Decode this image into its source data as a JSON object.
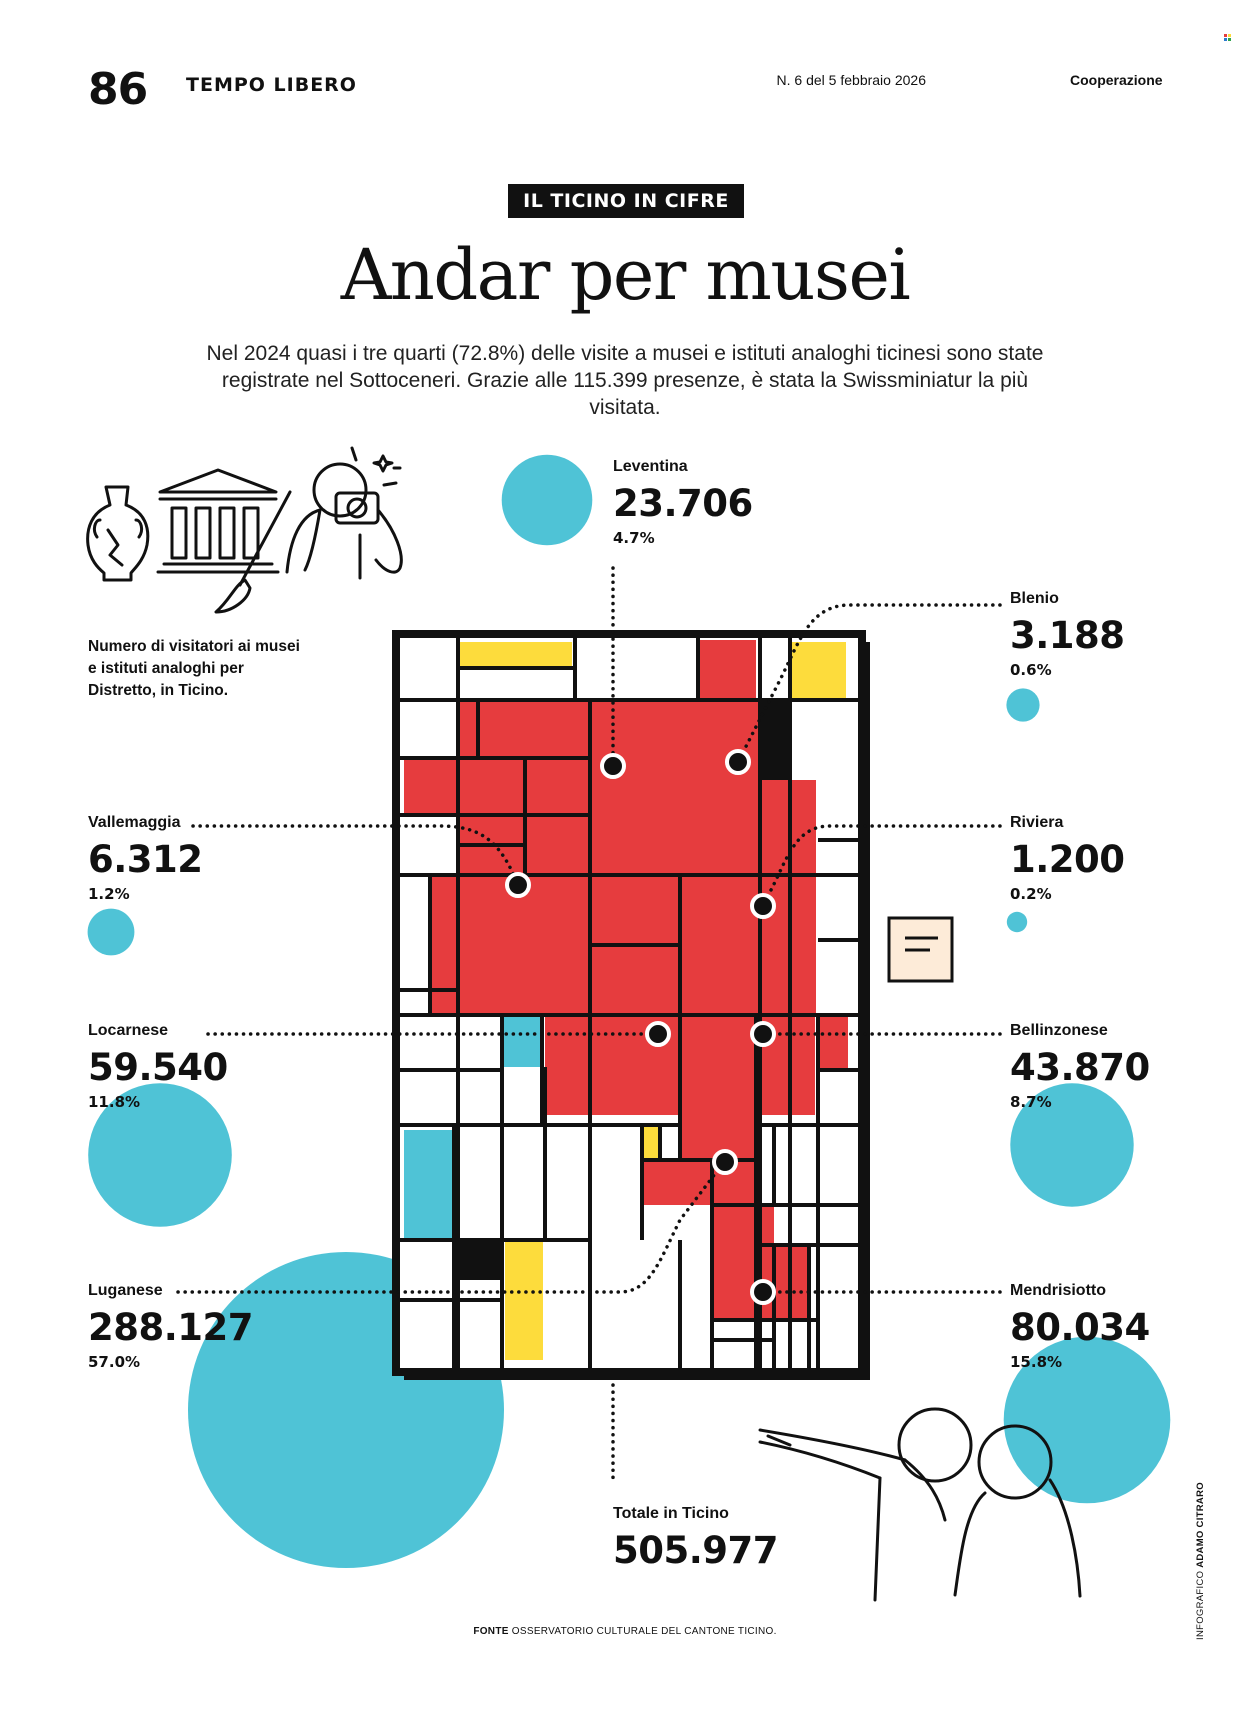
{
  "header": {
    "page_number": "86",
    "section": "TEMPO LIBERO",
    "issue": "N. 6 del 5 febbraio 2026",
    "magazine": "Cooperazione"
  },
  "badge": "IL TICINO IN CIFRE",
  "title": "Andar per musei",
  "subtitle": "Nel 2024 quasi i tre quarti (72.8%) delle visite a musei e istituti analoghi ticinesi sono state registrate nel Sottoceneri. Grazie alle 115.399 presenze, è stata la Swissminiatur la più visitata.",
  "description": "Numero di visitatori ai musei e istituti analoghi per Distretto, in Ticino.",
  "colors": {
    "circle": "#4FC3D6",
    "red": "#E63C3E",
    "yellow": "#FDDC3C",
    "black": "#111111"
  },
  "chart_data": {
    "type": "bubble",
    "title": "Andar per musei",
    "unit": "visitatori",
    "series": [
      {
        "name": "Leventina",
        "value": 23706,
        "value_label": "23.706",
        "percent": 4.7,
        "percent_label": "4.7%"
      },
      {
        "name": "Blenio",
        "value": 3188,
        "value_label": "3.188",
        "percent": 0.6,
        "percent_label": "0.6%"
      },
      {
        "name": "Vallemaggia",
        "value": 6312,
        "value_label": "6.312",
        "percent": 1.2,
        "percent_label": "1.2%"
      },
      {
        "name": "Riviera",
        "value": 1200,
        "value_label": "1.200",
        "percent": 0.2,
        "percent_label": "0.2%"
      },
      {
        "name": "Locarnese",
        "value": 59540,
        "value_label": "59.540",
        "percent": 11.8,
        "percent_label": "11.8%"
      },
      {
        "name": "Bellinzonese",
        "value": 43870,
        "value_label": "43.870",
        "percent": 8.7,
        "percent_label": "8.7%"
      },
      {
        "name": "Luganese",
        "value": 288127,
        "value_label": "288.127",
        "percent": 57.0,
        "percent_label": "57.0%"
      },
      {
        "name": "Mendrisiotto",
        "value": 80034,
        "value_label": "80.034",
        "percent": 15.8,
        "percent_label": "15.8%"
      }
    ],
    "total": {
      "label": "Totale in Ticino",
      "value": 505977,
      "value_label": "505.977"
    }
  },
  "source": {
    "label": "FONTE",
    "text": "OSSERVATORIO CULTURALE DEL CANTONE TICINO."
  },
  "credit": {
    "label": "INFOGRAFICO",
    "name": "ADAMO CITRARO"
  }
}
